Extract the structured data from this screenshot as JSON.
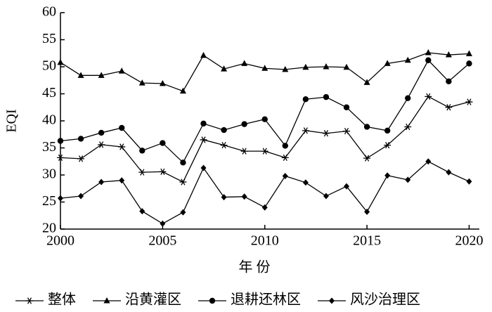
{
  "chart_data": {
    "type": "line",
    "x_label": "年 份",
    "y_label": "EQI",
    "x": [
      2000,
      2001,
      2002,
      2003,
      2004,
      2005,
      2006,
      2007,
      2008,
      2009,
      2010,
      2011,
      2012,
      2013,
      2014,
      2015,
      2016,
      2017,
      2018,
      2019,
      2020
    ],
    "xlim": [
      2000,
      2020.5
    ],
    "xticks": [
      2000,
      2005,
      2010,
      2015,
      2020
    ],
    "ylim": [
      20,
      60
    ],
    "yticks": [
      20,
      25,
      30,
      35,
      40,
      45,
      50,
      55,
      60
    ],
    "legend": "bottom",
    "series": [
      {
        "name": "整体",
        "color": "#000000",
        "marker": "asterisk",
        "values": [
          33.2,
          33.0,
          35.6,
          35.2,
          30.5,
          30.6,
          28.7,
          36.5,
          35.5,
          34.4,
          34.4,
          33.2,
          38.2,
          37.7,
          38.1,
          33.1,
          35.5,
          38.9,
          44.5,
          42.5,
          43.5
        ]
      },
      {
        "name": "沿黄灌区",
        "color": "#000000",
        "marker": "triangle",
        "values": [
          50.8,
          48.4,
          48.4,
          49.2,
          47.0,
          46.9,
          45.5,
          52.1,
          49.6,
          50.6,
          49.7,
          49.5,
          49.9,
          50.0,
          49.9,
          47.1,
          50.6,
          51.2,
          52.6,
          52.2,
          52.4
        ]
      },
      {
        "name": "退耕还林区",
        "color": "#000000",
        "marker": "circle",
        "values": [
          36.3,
          36.7,
          37.8,
          38.7,
          34.5,
          35.9,
          32.3,
          39.5,
          38.3,
          39.4,
          40.3,
          35.4,
          44.0,
          44.4,
          42.5,
          38.9,
          38.2,
          44.2,
          51.2,
          47.3,
          50.6
        ]
      },
      {
        "name": "风沙治理区",
        "color": "#000000",
        "marker": "diamond",
        "values": [
          25.7,
          26.1,
          28.7,
          29.0,
          23.3,
          21.0,
          23.1,
          31.3,
          25.9,
          26.0,
          24.0,
          29.8,
          28.6,
          26.1,
          27.9,
          23.2,
          29.9,
          29.1,
          32.5,
          30.5,
          28.8
        ]
      }
    ]
  }
}
